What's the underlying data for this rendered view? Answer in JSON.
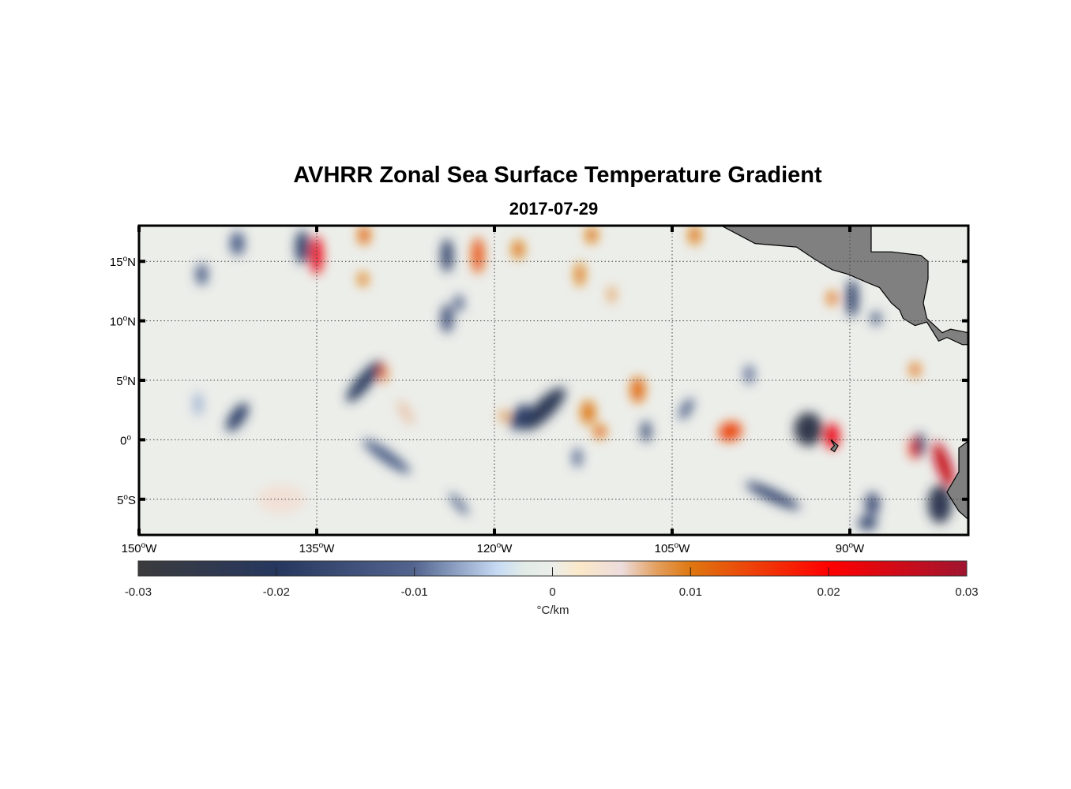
{
  "title": "AVHRR Zonal Sea Surface Temperature Gradient",
  "subtitle": "2017-07-29",
  "map": {
    "lon_range": [
      -150,
      -80
    ],
    "lat_range": [
      -8,
      18
    ],
    "ocean_color": "#eceeea",
    "land_color": "#808080",
    "lat_ticks": [
      {
        "v": 15,
        "label": "15",
        "hemi": "N"
      },
      {
        "v": 10,
        "label": "10",
        "hemi": "N"
      },
      {
        "v": 5,
        "label": "5",
        "hemi": "N"
      },
      {
        "v": 0,
        "label": "0",
        "hemi": ""
      },
      {
        "v": -5,
        "label": "5",
        "hemi": "S"
      }
    ],
    "lon_ticks": [
      {
        "v": -150,
        "label": "150",
        "hemi": "W"
      },
      {
        "v": -135,
        "label": "135",
        "hemi": "W"
      },
      {
        "v": -120,
        "label": "120",
        "hemi": "W"
      },
      {
        "v": -105,
        "label": "105",
        "hemi": "W"
      },
      {
        "v": -90,
        "label": "90",
        "hemi": "W"
      }
    ],
    "features": [
      [
        -135,
        15.5,
        0.022,
        0.5,
        1.6,
        0
      ],
      [
        -136.2,
        16.2,
        -0.018,
        0.6,
        1.4,
        0
      ],
      [
        -141.7,
        16.5,
        -0.012,
        0.6,
        1.0,
        0
      ],
      [
        -144.7,
        13.9,
        -0.012,
        0.5,
        0.9,
        0
      ],
      [
        -131,
        17.2,
        0.011,
        0.5,
        0.8,
        0
      ],
      [
        -131.1,
        13.5,
        0.01,
        0.4,
        0.6,
        0
      ],
      [
        -124,
        15.5,
        -0.018,
        0.5,
        1.4,
        0
      ],
      [
        -124,
        10.2,
        -0.015,
        0.5,
        1.2,
        0
      ],
      [
        -123,
        11.5,
        -0.012,
        0.4,
        0.7,
        0
      ],
      [
        -121.4,
        15.5,
        0.013,
        0.5,
        1.5,
        0
      ],
      [
        -118,
        16,
        0.01,
        0.5,
        0.8,
        0
      ],
      [
        -112.8,
        13.9,
        0.01,
        0.4,
        1.0,
        0
      ],
      [
        -111.8,
        17.2,
        0.01,
        0.5,
        0.7,
        0
      ],
      [
        -110.1,
        12.2,
        0.008,
        0.3,
        0.7,
        0
      ],
      [
        -131,
        4.9,
        -0.021,
        0.6,
        2.2,
        40
      ],
      [
        -141.7,
        1.9,
        -0.018,
        0.6,
        1.4,
        35
      ],
      [
        -129.4,
        5.6,
        0.012,
        0.3,
        0.8,
        0
      ],
      [
        -127.5,
        2.3,
        0.006,
        0.4,
        1.2,
        -30
      ],
      [
        -115.8,
        2.6,
        -0.023,
        0.8,
        2.4,
        45
      ],
      [
        -117.8,
        1.9,
        -0.018,
        0.7,
        1.2,
        30
      ],
      [
        -112.1,
        2.3,
        0.01,
        0.6,
        1.0,
        0
      ],
      [
        -111.1,
        0.7,
        0.011,
        0.5,
        0.6,
        0
      ],
      [
        -107.9,
        4.2,
        0.011,
        0.6,
        1.1,
        0
      ],
      [
        -119.2,
        2,
        0.008,
        0.4,
        0.5,
        0
      ],
      [
        -107.2,
        0.7,
        -0.016,
        0.4,
        0.9,
        0
      ],
      [
        -103.8,
        2.6,
        -0.012,
        0.4,
        1.0,
        30
      ],
      [
        -100.1,
        0.7,
        0.014,
        1.0,
        0.8,
        -20
      ],
      [
        -93.5,
        0.9,
        -0.026,
        1.2,
        1.4,
        0
      ],
      [
        -89.8,
        11.9,
        -0.018,
        0.5,
        1.6,
        0
      ],
      [
        -91.5,
        0.3,
        0.022,
        0.6,
        1.1,
        0
      ],
      [
        -129.1,
        -1.4,
        -0.012,
        0.5,
        2.4,
        -55
      ],
      [
        -123,
        -5.4,
        -0.012,
        0.3,
        1.2,
        -40
      ],
      [
        -96.5,
        -4.7,
        -0.016,
        0.5,
        2.5,
        -65
      ],
      [
        -113,
        -1.5,
        -0.01,
        0.4,
        0.8,
        0
      ],
      [
        -84.5,
        -0.7,
        0.016,
        0.5,
        0.9,
        0
      ],
      [
        -82.1,
        -2.1,
        0.026,
        0.6,
        2.0,
        -20
      ],
      [
        -84.1,
        -0.4,
        -0.02,
        0.4,
        1.0,
        0
      ],
      [
        -82.4,
        -5.4,
        -0.024,
        1.0,
        1.6,
        0
      ],
      [
        -91.5,
        11.9,
        0.011,
        0.4,
        0.6,
        0
      ],
      [
        -84.5,
        5.9,
        0.011,
        0.4,
        0.6,
        0
      ],
      [
        -87.8,
        10.2,
        -0.014,
        0.4,
        0.6,
        0
      ],
      [
        -103.1,
        17.2,
        0.01,
        0.5,
        0.8,
        0
      ],
      [
        -88.1,
        -5.4,
        -0.015,
        0.6,
        1.0,
        0
      ],
      [
        -88.5,
        -7,
        -0.016,
        0.8,
        0.6,
        0
      ],
      [
        -98.5,
        5.5,
        -0.01,
        0.4,
        0.8,
        0
      ],
      [
        -138,
        -5,
        0.004,
        2,
        1.2,
        0
      ],
      [
        -145,
        3,
        -0.006,
        0.4,
        1,
        0
      ]
    ],
    "land": [
      [
        [
          -101.8,
          18.5
        ],
        [
          -98,
          16.5
        ],
        [
          -94.5,
          16.2
        ],
        [
          -93,
          15.2
        ],
        [
          -91.5,
          14.3
        ],
        [
          -90.1,
          13.9
        ],
        [
          -88.5,
          13.2
        ],
        [
          -87.5,
          12.8
        ],
        [
          -86.5,
          11.5
        ],
        [
          -85.8,
          10.9
        ],
        [
          -85.5,
          10.2
        ],
        [
          -84.5,
          9.6
        ],
        [
          -83.5,
          9.9
        ],
        [
          -82.5,
          8.3
        ],
        [
          -81.8,
          8.6
        ],
        [
          -80.5,
          8.0
        ],
        [
          -80,
          8.0
        ],
        [
          -80,
          9
        ],
        [
          -81.5,
          9.3
        ],
        [
          -82.2,
          9.0
        ],
        [
          -83.5,
          10.2
        ],
        [
          -83.8,
          11.5
        ],
        [
          -83.4,
          13.5
        ],
        [
          -83.4,
          15.0
        ],
        [
          -84,
          15.5
        ],
        [
          -86.5,
          15.8
        ],
        [
          -88.2,
          15.8
        ],
        [
          -88.2,
          18.5
        ]
      ],
      [
        [
          -80,
          -0.1
        ],
        [
          -80.8,
          -0.7
        ],
        [
          -80.8,
          -2.7
        ],
        [
          -81.8,
          -4.4
        ],
        [
          -80.8,
          -6.0
        ],
        [
          -80,
          -6.7
        ]
      ],
      [
        [
          -91.6,
          0.0
        ],
        [
          -91.0,
          -0.5
        ],
        [
          -91.3,
          -1.0
        ],
        [
          -91.6,
          -0.8
        ],
        [
          -91.3,
          -0.5
        ]
      ]
    ]
  },
  "colorbar": {
    "ticks": [
      "-0.03",
      "-0.02",
      "-0.01",
      "0",
      "0.01",
      "0.02",
      "0.03"
    ],
    "range": [
      -0.03,
      0.03
    ],
    "label": "°C/km",
    "colormap": [
      [
        -0.03,
        "#3b3b3d"
      ],
      [
        -0.02,
        "#26375f"
      ],
      [
        -0.01,
        "#53658f"
      ],
      [
        -0.004,
        "#c6daf4"
      ],
      [
        -0.002,
        "#e2ece6"
      ],
      [
        0,
        "#eceeea"
      ],
      [
        0.002,
        "#fbe8c8"
      ],
      [
        0.005,
        "#ecdcdc"
      ],
      [
        0.0075,
        "#e3a060"
      ],
      [
        0.01,
        "#de7710"
      ],
      [
        0.02,
        "#ff0000"
      ],
      [
        0.03,
        "#a01530"
      ]
    ]
  }
}
